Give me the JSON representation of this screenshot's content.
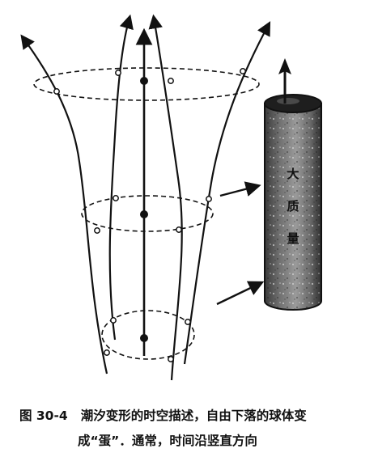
{
  "figure": {
    "mass_label": [
      "大",
      "质",
      "量"
    ]
  },
  "caption": {
    "figure_number": "图 30-4",
    "line1": "潮汐变形的时空描述，自由下落的球体变",
    "line2": "成“蛋”．通常，时间沿竖直方向"
  }
}
